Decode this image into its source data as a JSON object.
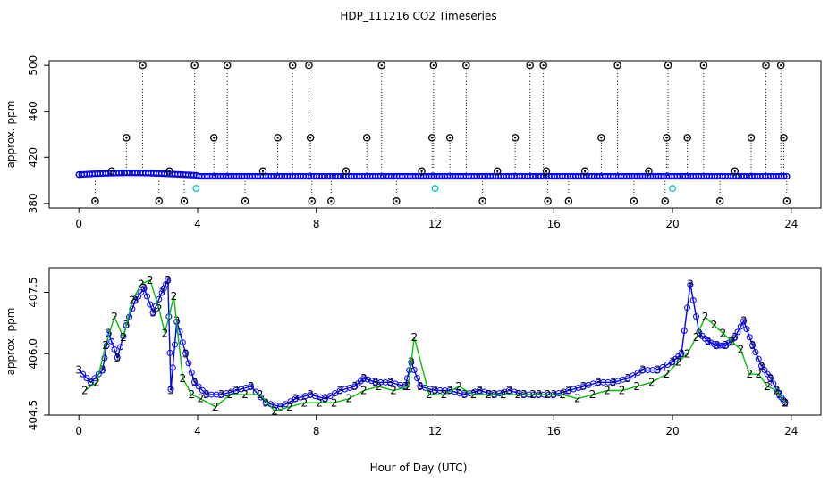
{
  "title": "HDP_111216  CO2 Timeseries",
  "xlabel": "Hour of Day (UTC)",
  "colors": {
    "black": "#000000",
    "blue": "#0000ff",
    "cyan": "#00c8c8",
    "green": "#00c000"
  },
  "chart_data": [
    {
      "type": "scatter",
      "panel": "top",
      "ylabel": "approx. ppm",
      "xlim": [
        -1,
        25
      ],
      "ylim": [
        376,
        504
      ],
      "xticks": [
        0,
        4,
        8,
        12,
        16,
        20,
        24
      ],
      "yticks": [
        380,
        420,
        460,
        500
      ],
      "series": [
        {
          "marker": "circle",
          "color": "#0000ff",
          "style": "baseline_band"
        },
        {
          "marker": "circle",
          "color": "#000000",
          "style": "spikes",
          "x": [
            0.55,
            1.1,
            1.6,
            2.15,
            2.7,
            3.05,
            3.55,
            3.9,
            4.55,
            5.0,
            5.6,
            6.2,
            6.7,
            7.2,
            7.75,
            7.8,
            7.85,
            8.5,
            9.0,
            9.7,
            10.2,
            10.7,
            11.55,
            11.9,
            11.95,
            12.5,
            13.05,
            13.6,
            14.1,
            14.7,
            15.2,
            15.65,
            15.75,
            15.8,
            16.5,
            17.05,
            17.6,
            18.15,
            18.7,
            19.2,
            19.75,
            19.8,
            19.85,
            20.5,
            21.05,
            21.6,
            22.1,
            22.65,
            23.15,
            23.65,
            23.75,
            23.85
          ],
          "y": [
            382,
            408,
            437,
            500,
            382,
            408,
            382,
            500,
            437,
            500,
            382,
            408,
            437,
            500,
            500,
            437,
            382,
            382,
            408,
            437,
            500,
            382,
            408,
            437,
            500,
            437,
            500,
            382,
            408,
            437,
            500,
            500,
            408,
            382,
            382,
            408,
            437,
            500,
            382,
            408,
            382,
            437,
            500,
            437,
            500,
            382,
            408,
            437,
            500,
            500,
            437,
            382
          ]
        },
        {
          "marker": "circle",
          "color": "#00c8c8",
          "style": "points",
          "x": [
            3.95,
            12.0,
            20.0
          ],
          "y": [
            393,
            393,
            393
          ]
        }
      ]
    },
    {
      "type": "line",
      "panel": "bottom",
      "ylabel": "approx. ppm",
      "xlim": [
        -1,
        25
      ],
      "ylim": [
        404.5,
        408.1
      ],
      "xticks": [
        0,
        4,
        8,
        12,
        16,
        20,
        24
      ],
      "yticks": [
        404.5,
        406.0,
        407.5
      ],
      "series": [
        {
          "marker": "3",
          "color": "#0000ff",
          "x": [
            0.0,
            0.4,
            0.8,
            1.0,
            1.3,
            1.6,
            1.9,
            2.2,
            2.5,
            2.8,
            3.0,
            3.1,
            3.3,
            3.6,
            3.9,
            4.3,
            4.8,
            5.3,
            5.8,
            6.3,
            6.8,
            7.3,
            7.8,
            8.3,
            8.8,
            9.3,
            9.6,
            10.0,
            10.5,
            11.0,
            11.2,
            11.5,
            12.0,
            12.5,
            13.0,
            13.5,
            14.0,
            14.5,
            15.0,
            15.5,
            16.0,
            16.5,
            17.0,
            17.5,
            18.0,
            18.5,
            19.0,
            19.5,
            20.0,
            20.3,
            20.6,
            20.9,
            21.2,
            21.5,
            21.8,
            22.1,
            22.4,
            22.7,
            23.0,
            23.3,
            23.6,
            23.8
          ],
          "y": [
            405.6,
            405.3,
            405.6,
            406.5,
            405.9,
            406.7,
            407.3,
            407.6,
            407.0,
            407.5,
            407.8,
            405.1,
            406.8,
            406.0,
            405.3,
            405.0,
            405.0,
            405.1,
            405.2,
            404.8,
            404.7,
            404.9,
            405.0,
            404.9,
            405.1,
            405.2,
            405.4,
            405.3,
            405.3,
            405.2,
            405.8,
            405.2,
            405.1,
            405.1,
            405.0,
            405.1,
            405.0,
            405.1,
            405.0,
            405.0,
            405.0,
            405.1,
            405.2,
            405.3,
            405.3,
            405.4,
            405.6,
            405.6,
            405.8,
            406.0,
            407.7,
            406.5,
            406.3,
            406.2,
            406.2,
            406.4,
            406.8,
            406.2,
            405.7,
            405.4,
            405.0,
            404.8
          ]
        },
        {
          "marker": "2",
          "color": "#00c000",
          "x": [
            0.2,
            0.6,
            0.9,
            1.2,
            1.5,
            1.8,
            2.1,
            2.4,
            2.7,
            2.9,
            3.2,
            3.5,
            3.8,
            4.1,
            4.6,
            5.1,
            5.6,
            6.1,
            6.6,
            7.1,
            7.6,
            8.1,
            8.6,
            9.1,
            9.6,
            10.1,
            10.6,
            11.1,
            11.3,
            11.8,
            12.3,
            12.8,
            13.3,
            13.8,
            14.3,
            14.8,
            15.3,
            15.8,
            16.3,
            16.8,
            17.3,
            17.8,
            18.3,
            18.8,
            19.3,
            19.8,
            20.2,
            20.5,
            20.8,
            21.1,
            21.4,
            21.7,
            22.0,
            22.3,
            22.6,
            22.9,
            23.2,
            23.5,
            23.8
          ],
          "y": [
            405.1,
            405.3,
            406.2,
            406.9,
            406.4,
            407.3,
            407.7,
            407.8,
            407.1,
            406.5,
            407.4,
            405.4,
            405.0,
            404.9,
            404.7,
            405.0,
            405.0,
            405.0,
            404.6,
            404.7,
            404.8,
            404.8,
            404.8,
            404.9,
            405.1,
            405.2,
            405.1,
            405.2,
            406.4,
            405.0,
            405.0,
            405.2,
            405.0,
            405.0,
            405.0,
            405.0,
            405.0,
            405.0,
            405.0,
            404.9,
            405.0,
            405.1,
            405.1,
            405.2,
            405.3,
            405.5,
            405.8,
            406.0,
            406.4,
            406.9,
            406.7,
            406.5,
            406.3,
            406.1,
            405.5,
            405.5,
            405.2,
            405.1,
            404.8
          ]
        }
      ]
    }
  ]
}
